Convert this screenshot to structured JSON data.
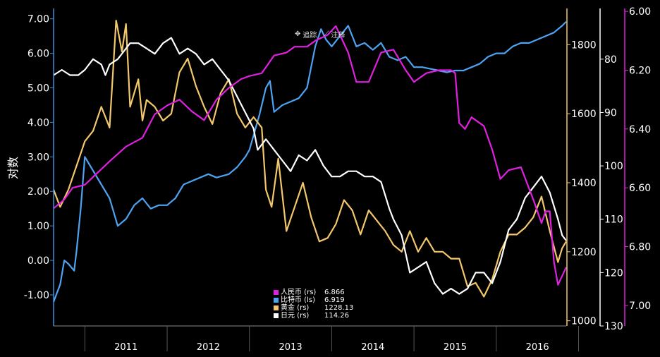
{
  "toolbar": {
    "track_label": "追踪",
    "annotate_label": "注释"
  },
  "chart_data": {
    "type": "line",
    "ylabel": "对数",
    "x_categories": [
      "2011",
      "2012",
      "2013",
      "2014",
      "2015",
      "2016"
    ],
    "xlim": [
      2010.62,
      2016.85
    ],
    "axes": {
      "left": {
        "label": "对数",
        "ticks": [
          -1,
          0,
          1,
          2,
          3,
          4,
          5,
          6,
          7
        ],
        "tick_labels": [
          "-1.00",
          "0.00",
          "1.00",
          "2.00",
          "3.00",
          "4.00",
          "5.00",
          "6.00",
          "7.00"
        ],
        "range": [
          -1.9,
          7.3
        ],
        "color": "#3f8fd8"
      },
      "gold": {
        "ticks": [
          1000,
          1200,
          1400,
          1600,
          1800
        ],
        "tick_labels": [
          "1000",
          "1200",
          "1400",
          "1600",
          "1800"
        ],
        "range": [
          985,
          1905
        ],
        "color": "#f3c86b"
      },
      "yen": {
        "ticks": [
          80,
          90,
          100,
          110,
          120,
          130
        ],
        "tick_labels": [
          "80",
          "90",
          "100",
          "110",
          "120",
          "130"
        ],
        "range": [
          70.5,
          130
        ],
        "inverted": true,
        "color": "#ffffff"
      },
      "cny": {
        "ticks": [
          6.0,
          6.2,
          6.4,
          6.6,
          6.8,
          7.0
        ],
        "tick_labels": [
          "6.00",
          "6.20",
          "6.40",
          "6.60",
          "6.80",
          "7.00"
        ],
        "range": [
          5.99,
          7.07
        ],
        "inverted": true,
        "color": "#e020e0"
      }
    },
    "grid": false,
    "legend": {
      "position": "bottom-center",
      "entries": [
        {
          "name": "人民币 (rs)",
          "value": "6.866",
          "color": "#e020e0"
        },
        {
          "name": "比特币 (ls)",
          "value": "6.919",
          "color": "#4da3f2"
        },
        {
          "name": "黄金 (rs)",
          "value": "1228.13",
          "color": "#f3c86b"
        },
        {
          "name": "日元 (rs)",
          "value": "114.26",
          "color": "#ffffff"
        }
      ]
    },
    "series": [
      {
        "name": "人民币 (rs)",
        "axis": "cny",
        "color": "#e020e0",
        "x": [
          2010.62,
          2010.75,
          2010.85,
          2011.0,
          2011.15,
          2011.3,
          2011.5,
          2011.7,
          2011.85,
          2012.0,
          2012.15,
          2012.3,
          2012.45,
          2012.6,
          2012.75,
          2012.9,
          2013.0,
          2013.15,
          2013.3,
          2013.45,
          2013.55,
          2013.7,
          2013.8,
          2013.95,
          2014.05,
          2014.2,
          2014.3,
          2014.45,
          2014.6,
          2014.75,
          2014.9,
          2015.0,
          2015.15,
          2015.3,
          2015.45,
          2015.5,
          2015.55,
          2015.62,
          2015.7,
          2015.85,
          2015.95,
          2016.05,
          2016.15,
          2016.3,
          2016.45,
          2016.55,
          2016.6,
          2016.65,
          2016.7,
          2016.75,
          2016.8,
          2016.85
        ],
        "y": [
          6.67,
          6.64,
          6.6,
          6.59,
          6.55,
          6.51,
          6.46,
          6.43,
          6.35,
          6.32,
          6.3,
          6.34,
          6.37,
          6.3,
          6.26,
          6.23,
          6.22,
          6.21,
          6.15,
          6.14,
          6.12,
          6.12,
          6.1,
          6.08,
          6.05,
          6.14,
          6.24,
          6.24,
          6.14,
          6.13,
          6.2,
          6.24,
          6.21,
          6.2,
          6.2,
          6.21,
          6.38,
          6.4,
          6.36,
          6.39,
          6.47,
          6.57,
          6.54,
          6.53,
          6.64,
          6.72,
          6.68,
          6.68,
          6.85,
          6.93,
          6.9,
          6.87
        ]
      },
      {
        "name": "比特币 (ls)",
        "axis": "left",
        "color": "#4da3f2",
        "x": [
          2010.62,
          2010.7,
          2010.75,
          2010.8,
          2010.87,
          2010.9,
          2010.95,
          2011.0,
          2011.2,
          2011.3,
          2011.4,
          2011.5,
          2011.6,
          2011.7,
          2011.8,
          2011.9,
          2012.0,
          2012.1,
          2012.2,
          2012.3,
          2012.5,
          2012.6,
          2012.75,
          2012.85,
          2012.95,
          2013.0,
          2013.12,
          2013.2,
          2013.25,
          2013.3,
          2013.4,
          2013.5,
          2013.6,
          2013.7,
          2013.8,
          2013.87,
          2013.93,
          2014.0,
          2014.1,
          2014.2,
          2014.3,
          2014.4,
          2014.5,
          2014.6,
          2014.7,
          2014.8,
          2014.9,
          2015.0,
          2015.1,
          2015.2,
          2015.3,
          2015.4,
          2015.5,
          2015.6,
          2015.7,
          2015.8,
          2015.9,
          2016.0,
          2016.1,
          2016.2,
          2016.3,
          2016.4,
          2016.5,
          2016.6,
          2016.7,
          2016.8,
          2016.85
        ],
        "y": [
          -1.2,
          -0.7,
          0.0,
          -0.1,
          -0.3,
          0.3,
          1.5,
          3.0,
          2.2,
          1.8,
          1.0,
          1.2,
          1.6,
          1.8,
          1.5,
          1.6,
          1.6,
          1.8,
          2.2,
          2.3,
          2.5,
          2.4,
          2.5,
          2.7,
          3.0,
          3.2,
          4.2,
          5.0,
          5.2,
          4.3,
          4.5,
          4.6,
          4.7,
          5.0,
          6.2,
          6.7,
          6.4,
          6.2,
          6.5,
          6.8,
          6.2,
          6.3,
          6.1,
          6.3,
          5.9,
          5.8,
          5.9,
          5.6,
          5.6,
          5.55,
          5.5,
          5.45,
          5.5,
          5.5,
          5.6,
          5.7,
          5.9,
          6.0,
          6.0,
          6.2,
          6.3,
          6.3,
          6.4,
          6.5,
          6.6,
          6.8,
          6.92
        ]
      },
      {
        "name": "黄金 (rs)",
        "axis": "gold",
        "color": "#f3c86b",
        "x": [
          2010.62,
          2010.7,
          2010.8,
          2010.9,
          2011.0,
          2011.1,
          2011.2,
          2011.3,
          2011.38,
          2011.45,
          2011.5,
          2011.55,
          2011.65,
          2011.7,
          2011.75,
          2011.85,
          2011.95,
          2012.05,
          2012.15,
          2012.25,
          2012.35,
          2012.45,
          2012.55,
          2012.65,
          2012.75,
          2012.85,
          2012.95,
          2013.05,
          2013.15,
          2013.2,
          2013.27,
          2013.35,
          2013.45,
          2013.55,
          2013.65,
          2013.75,
          2013.85,
          2013.95,
          2014.05,
          2014.15,
          2014.25,
          2014.35,
          2014.45,
          2014.55,
          2014.65,
          2014.75,
          2014.85,
          2014.95,
          2015.05,
          2015.15,
          2015.25,
          2015.35,
          2015.45,
          2015.55,
          2015.65,
          2015.75,
          2015.85,
          2015.95,
          2016.05,
          2016.15,
          2016.25,
          2016.35,
          2016.45,
          2016.55,
          2016.65,
          2016.75,
          2016.8,
          2016.85
        ],
        "y": [
          1380,
          1330,
          1380,
          1450,
          1520,
          1550,
          1620,
          1560,
          1870,
          1780,
          1860,
          1620,
          1700,
          1580,
          1640,
          1620,
          1580,
          1600,
          1720,
          1760,
          1680,
          1620,
          1570,
          1660,
          1700,
          1600,
          1560,
          1590,
          1560,
          1380,
          1330,
          1470,
          1260,
          1330,
          1400,
          1300,
          1230,
          1240,
          1280,
          1350,
          1320,
          1250,
          1320,
          1290,
          1260,
          1220,
          1200,
          1260,
          1200,
          1240,
          1200,
          1200,
          1180,
          1180,
          1100,
          1110,
          1070,
          1120,
          1200,
          1250,
          1250,
          1270,
          1300,
          1360,
          1260,
          1170,
          1210,
          1230
        ]
      },
      {
        "name": "日元 (rs)",
        "axis": "yen",
        "color": "#ffffff",
        "x": [
          2010.62,
          2010.72,
          2010.82,
          2010.92,
          2011.0,
          2011.1,
          2011.2,
          2011.25,
          2011.3,
          2011.4,
          2011.5,
          2011.55,
          2011.65,
          2011.75,
          2011.85,
          2011.95,
          2012.05,
          2012.15,
          2012.25,
          2012.35,
          2012.45,
          2012.55,
          2012.65,
          2012.75,
          2012.85,
          2012.95,
          2013.05,
          2013.1,
          2013.2,
          2013.3,
          2013.4,
          2013.5,
          2013.6,
          2013.7,
          2013.8,
          2013.9,
          2014.0,
          2014.1,
          2014.2,
          2014.3,
          2014.4,
          2014.5,
          2014.6,
          2014.7,
          2014.75,
          2014.85,
          2014.95,
          2015.05,
          2015.15,
          2015.25,
          2015.35,
          2015.45,
          2015.55,
          2015.65,
          2015.75,
          2015.85,
          2015.95,
          2016.05,
          2016.15,
          2016.25,
          2016.35,
          2016.45,
          2016.55,
          2016.65,
          2016.75,
          2016.8,
          2016.85
        ],
        "y": [
          83,
          82,
          83,
          83,
          82,
          80,
          81,
          83,
          81,
          80,
          78,
          77,
          77,
          78,
          79,
          77,
          76,
          79,
          78,
          79,
          81,
          80,
          82,
          84,
          87,
          90,
          93,
          97,
          95,
          97,
          99,
          101,
          98,
          99,
          97,
          100,
          102,
          102,
          101,
          101,
          102,
          102,
          103,
          108,
          110,
          113,
          120,
          119,
          118,
          122,
          124,
          123,
          124,
          123,
          120,
          120,
          122,
          118,
          112,
          110,
          106,
          104,
          102,
          105,
          110,
          113,
          114
        ]
      }
    ]
  }
}
